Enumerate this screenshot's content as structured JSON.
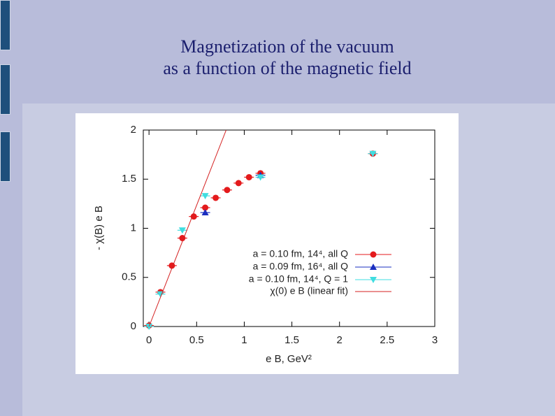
{
  "slide": {
    "title_lines": [
      "Magnetization of the vacuum",
      "as a function of the magnetic field"
    ]
  },
  "chart_data": {
    "type": "scatter",
    "xlabel": "e B, GeV²",
    "ylabel": "- χ(B) e B",
    "xlim": [
      -0.06,
      3
    ],
    "ylim": [
      0,
      2
    ],
    "xticks": [
      0,
      0.5,
      1,
      1.5,
      2,
      2.5,
      3
    ],
    "yticks": [
      0,
      0.5,
      1,
      1.5,
      2
    ],
    "legend": "center-right",
    "series": [
      {
        "name": "a = 0.10 fm, 14⁴, all Q",
        "color": "#e41a1c",
        "marker": "circle",
        "x": [
          0,
          0.12,
          0.24,
          0.35,
          0.47,
          0.59,
          0.7,
          0.82,
          0.94,
          1.05,
          1.17,
          2.35
        ],
        "values": [
          0.01,
          0.35,
          0.62,
          0.9,
          1.12,
          1.21,
          1.31,
          1.39,
          1.46,
          1.52,
          1.56,
          1.76
        ]
      },
      {
        "name": "a = 0.09 fm, 16⁴, all Q",
        "color": "#1a2fc0",
        "marker": "triangle",
        "x": [
          0.59,
          1.17
        ],
        "values": [
          1.16,
          1.54
        ]
      },
      {
        "name": "a = 0.10 fm, 14⁴, Q = 1",
        "color": "#3fdde0",
        "marker": "triangle-down",
        "x": [
          0,
          0.12,
          0.35,
          0.59,
          1.17,
          2.35
        ],
        "values": [
          0,
          0.33,
          0.98,
          1.33,
          1.52,
          1.76
        ]
      },
      {
        "name": "χ(0) e B (linear fit)",
        "color": "#d42020",
        "marker": "line",
        "x": [
          0,
          0.81
        ],
        "values": [
          0,
          2
        ]
      }
    ]
  }
}
